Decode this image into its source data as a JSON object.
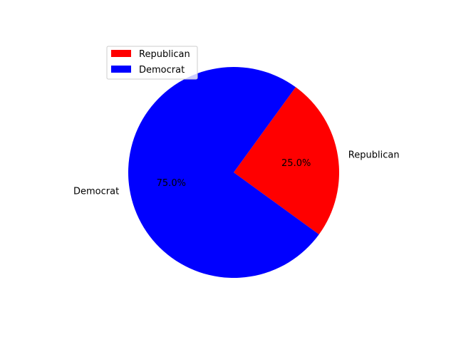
{
  "chart_data": {
    "type": "pie",
    "labels": [
      "Republican",
      "Democrat"
    ],
    "values": [
      25.0,
      75.0
    ],
    "percent_labels": [
      "25.0%",
      "75.0%"
    ],
    "colors": [
      "#ff0000",
      "#0000ff"
    ],
    "start_angle_deg": -36,
    "direction": "counterclockwise",
    "title": "",
    "legend": {
      "placement": "upper-left",
      "entries": [
        "Republican",
        "Democrat"
      ]
    }
  }
}
